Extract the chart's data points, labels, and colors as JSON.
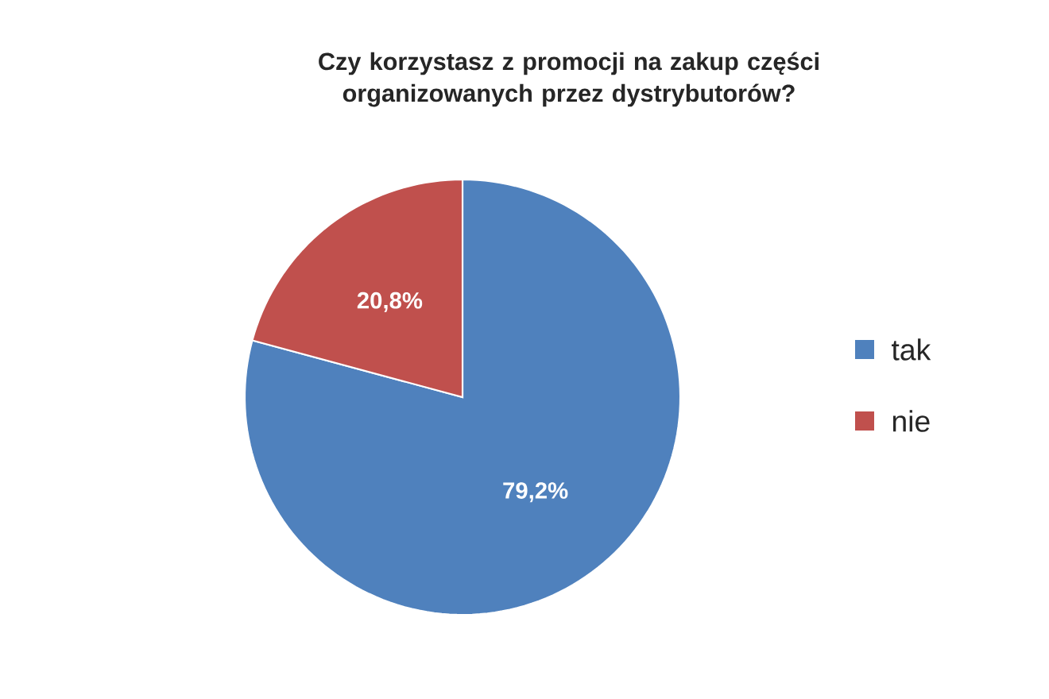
{
  "chart_data": {
    "type": "pie",
    "title": "Czy korzystasz z promocji na zakup części organizowanych przez dystrybutorów?",
    "categories": [
      "tak",
      "nie"
    ],
    "values": [
      79.2,
      20.8
    ],
    "colors": [
      "#4f81bd",
      "#c0504d"
    ],
    "value_labels": [
      "79,2%",
      "20,8%"
    ],
    "legend": "right"
  }
}
